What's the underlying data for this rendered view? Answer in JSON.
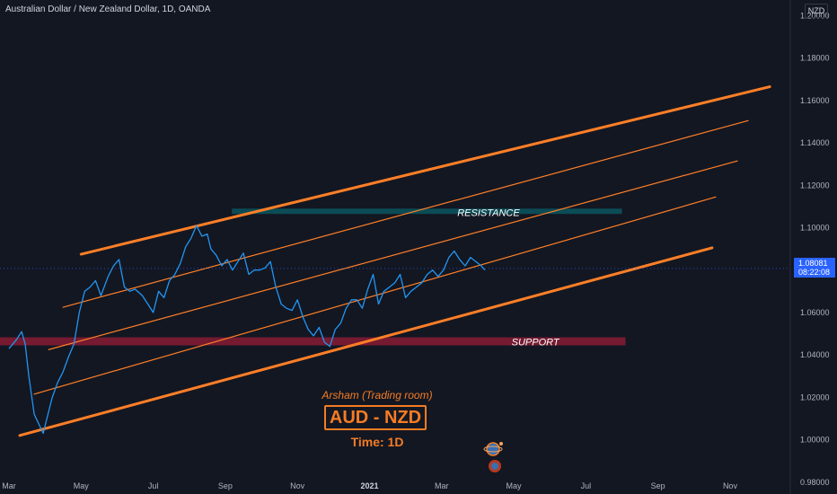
{
  "header": {
    "symbol": "Australian Dollar / New Zealand Dollar, 1D, OANDA",
    "currency": "NZD"
  },
  "price_tag": {
    "price": "1.08081",
    "countdown": "08:22:08"
  },
  "annotations": {
    "resistance": "RESISTANCE",
    "support": "SUPPORT",
    "author": "Arsham (Trading room)",
    "title": "AUD - NZD",
    "timeframe": "Time: 1D"
  },
  "colors": {
    "background": "#131722",
    "price_line": "#2196f3",
    "channel": "#ff7f27",
    "resistance_zone": "#0b4f5a",
    "support_zone": "#7a1a33",
    "label": "#f57c24"
  },
  "icons": [
    "planet-logo-icon"
  ],
  "chart_data": {
    "type": "line",
    "title": "Australian Dollar / New Zealand Dollar, 1D, OANDA",
    "y_axis_labels": [
      "1.20000",
      "1.18000",
      "1.16000",
      "1.14000",
      "1.12000",
      "1.10000",
      "1.08000",
      "1.06000",
      "1.04000",
      "1.02000",
      "1.00000",
      "0.98000"
    ],
    "ylim": [
      0.9744,
      1.2074
    ],
    "x_axis_labels": [
      "Mar",
      "May",
      "Jul",
      "Sep",
      "Nov",
      "2021",
      "Mar",
      "May",
      "Jul",
      "Sep",
      "Nov"
    ],
    "x_axis_label_months": [
      0,
      2,
      4,
      6,
      8,
      10,
      12,
      14,
      16,
      18,
      20
    ],
    "xlim_months": [
      0,
      20.3
    ],
    "series": [
      {
        "x": [
          0,
          0.2,
          0.35,
          0.45,
          0.55,
          0.7,
          0.95,
          1.05,
          1.2,
          1.35,
          1.5,
          1.65,
          1.8,
          1.95,
          2.1,
          2.25,
          2.4,
          2.55,
          2.75,
          2.9,
          3.05,
          3.2,
          3.35,
          3.5,
          3.7,
          3.85,
          4.0,
          4.15,
          4.3,
          4.45,
          4.6,
          4.75,
          4.9,
          5.05,
          5.2,
          5.35,
          5.5,
          5.6,
          5.75,
          5.9,
          6.05,
          6.2,
          6.35,
          6.5,
          6.65,
          6.8,
          6.95,
          7.1,
          7.25,
          7.4,
          7.55,
          7.7,
          7.85,
          8.0,
          8.15,
          8.3,
          8.45,
          8.6,
          8.75,
          8.9,
          9.05,
          9.2,
          9.35,
          9.5,
          9.65,
          9.8,
          9.95,
          10.1,
          10.25,
          10.4,
          10.55,
          10.7,
          10.85,
          11.0,
          11.15,
          11.3,
          11.45,
          11.6,
          11.75,
          11.9,
          12.05,
          12.2,
          12.35,
          12.5,
          12.65,
          12.8,
          12.95,
          13.1,
          13.2
        ],
        "values": [
          1.043,
          1.047,
          1.051,
          1.045,
          1.03,
          1.012,
          1.003,
          1.01,
          1.02,
          1.027,
          1.032,
          1.039,
          1.045,
          1.06,
          1.07,
          1.072,
          1.075,
          1.068,
          1.077,
          1.082,
          1.085,
          1.072,
          1.07,
          1.071,
          1.068,
          1.064,
          1.06,
          1.07,
          1.067,
          1.075,
          1.078,
          1.083,
          1.091,
          1.095,
          1.101,
          1.096,
          1.097,
          1.09,
          1.087,
          1.082,
          1.085,
          1.08,
          1.084,
          1.088,
          1.078,
          1.08,
          1.08,
          1.081,
          1.084,
          1.072,
          1.064,
          1.062,
          1.061,
          1.066,
          1.058,
          1.052,
          1.049,
          1.053,
          1.046,
          1.044,
          1.052,
          1.055,
          1.062,
          1.066,
          1.066,
          1.062,
          1.071,
          1.078,
          1.064,
          1.07,
          1.072,
          1.074,
          1.078,
          1.067,
          1.07,
          1.072,
          1.074,
          1.078,
          1.08,
          1.077,
          1.08,
          1.086,
          1.089,
          1.085,
          1.082,
          1.086,
          1.084,
          1.082,
          1.08
        ]
      }
    ]
  }
}
